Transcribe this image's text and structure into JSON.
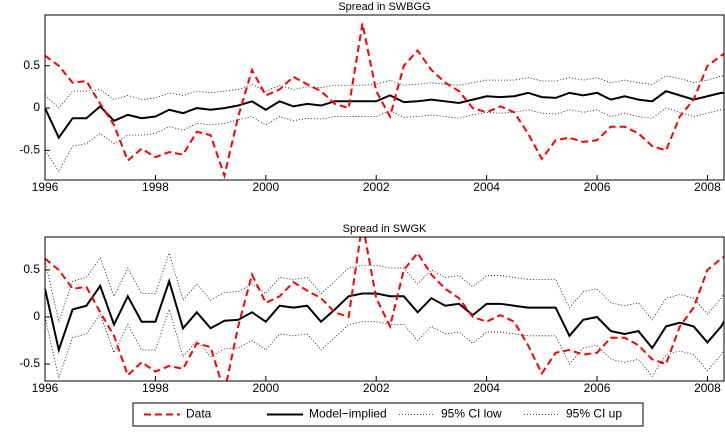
{
  "chart_data": [
    {
      "type": "line",
      "title": "Spread in SWBGG",
      "x": [
        1996,
        1996.25,
        1996.5,
        1996.75,
        1997,
        1997.25,
        1997.5,
        1997.75,
        1998,
        1998.25,
        1998.5,
        1998.75,
        1999,
        1999.25,
        1999.5,
        1999.75,
        2000,
        2000.25,
        2000.5,
        2000.75,
        2001,
        2001.25,
        2001.5,
        2001.75,
        2002,
        2002.25,
        2002.5,
        2002.75,
        2003,
        2003.25,
        2003.5,
        2003.75,
        2004,
        2004.25,
        2004.5,
        2004.75,
        2005,
        2005.25,
        2005.5,
        2005.75,
        2006,
        2006.25,
        2006.5,
        2006.75,
        2007,
        2007.25,
        2007.5,
        2007.75,
        2008,
        2008.25,
        2008.5
      ],
      "xlim": [
        1996,
        2008.3
      ],
      "xticks": [
        1996,
        1998,
        2000,
        2002,
        2004,
        2006,
        2008
      ],
      "ylim": [
        -0.85,
        1.1
      ],
      "yticks": [
        -0.5,
        0,
        0.5
      ],
      "series": [
        {
          "name": "Data",
          "color": "#ff0000",
          "style": "dashed",
          "values": [
            0.62,
            0.5,
            0.3,
            0.32,
            0.05,
            -0.2,
            -0.62,
            -0.48,
            -0.58,
            -0.52,
            -0.55,
            -0.28,
            -0.32,
            -0.8,
            -0.1,
            0.45,
            0.15,
            0.22,
            0.37,
            0.28,
            0.2,
            0.05,
            0.0,
            1.0,
            0.2,
            -0.1,
            0.5,
            0.68,
            0.45,
            0.3,
            0.2,
            0.0,
            -0.05,
            0.02,
            -0.05,
            -0.3,
            -0.6,
            -0.38,
            -0.35,
            -0.4,
            -0.38,
            -0.22,
            -0.22,
            -0.3,
            -0.45,
            -0.5,
            -0.1,
            0.1,
            0.5,
            0.62,
            0.72
          ]
        },
        {
          "name": "Model−implied",
          "color": "#000000",
          "style": "solid",
          "values": [
            0,
            -0.35,
            -0.12,
            -0.12,
            0.02,
            -0.15,
            -0.08,
            -0.12,
            -0.1,
            -0.02,
            -0.06,
            0.0,
            -0.02,
            0.0,
            0.03,
            0.08,
            -0.02,
            0.08,
            0.02,
            0.05,
            0.03,
            0.08,
            0.08,
            0.08,
            0.08,
            0.15,
            0.07,
            0.08,
            0.1,
            0.08,
            0.06,
            0.1,
            0.14,
            0.13,
            0.14,
            0.18,
            0.13,
            0.12,
            0.18,
            0.15,
            0.18,
            0.1,
            0.14,
            0.1,
            0.08,
            0.2,
            0.15,
            0.1,
            0.14,
            0.18,
            0.18
          ]
        },
        {
          "name": "95% CI low",
          "color": "#000000",
          "style": "dotted",
          "values": [
            -0.5,
            -0.75,
            -0.45,
            -0.42,
            -0.3,
            -0.42,
            -0.32,
            -0.32,
            -0.3,
            -0.22,
            -0.26,
            -0.18,
            -0.2,
            -0.18,
            -0.14,
            -0.1,
            -0.2,
            -0.1,
            -0.15,
            -0.12,
            -0.13,
            -0.1,
            -0.1,
            -0.1,
            -0.1,
            -0.03,
            -0.11,
            -0.1,
            -0.08,
            -0.1,
            -0.12,
            -0.08,
            -0.05,
            -0.06,
            -0.05,
            -0.02,
            -0.06,
            -0.07,
            -0.02,
            -0.05,
            -0.02,
            -0.1,
            -0.06,
            -0.1,
            -0.12,
            0.0,
            -0.05,
            -0.1,
            -0.06,
            -0.02,
            -0.02
          ]
        },
        {
          "name": "95% CI up",
          "color": "#000000",
          "style": "dotted",
          "values": [
            0.15,
            0.0,
            0.2,
            0.2,
            0.22,
            0.1,
            0.15,
            0.1,
            0.12,
            0.18,
            0.15,
            0.2,
            0.18,
            0.2,
            0.22,
            0.28,
            0.2,
            0.27,
            0.22,
            0.25,
            0.24,
            0.27,
            0.27,
            0.27,
            0.28,
            0.33,
            0.27,
            0.28,
            0.3,
            0.28,
            0.27,
            0.3,
            0.33,
            0.33,
            0.33,
            0.36,
            0.32,
            0.32,
            0.36,
            0.33,
            0.36,
            0.3,
            0.33,
            0.3,
            0.28,
            0.38,
            0.35,
            0.3,
            0.33,
            0.38,
            0.38
          ]
        }
      ]
    },
    {
      "type": "line",
      "title": "Spread in SWGK",
      "x": [
        1996,
        1996.25,
        1996.5,
        1996.75,
        1997,
        1997.25,
        1997.5,
        1997.75,
        1998,
        1998.25,
        1998.5,
        1998.75,
        1999,
        1999.25,
        1999.5,
        1999.75,
        2000,
        2000.25,
        2000.5,
        2000.75,
        2001,
        2001.25,
        2001.5,
        2001.75,
        2002,
        2002.25,
        2002.5,
        2002.75,
        2003,
        2003.25,
        2003.5,
        2003.75,
        2004,
        2004.25,
        2004.5,
        2004.75,
        2005,
        2005.25,
        2005.5,
        2005.75,
        2006,
        2006.25,
        2006.5,
        2006.75,
        2007,
        2007.25,
        2007.5,
        2007.75,
        2008,
        2008.25,
        2008.5
      ],
      "xlim": [
        1996,
        2008.3
      ],
      "xticks": [
        1996,
        1998,
        2000,
        2002,
        2004,
        2006,
        2008
      ],
      "ylim": [
        -0.68,
        0.85
      ],
      "yticks": [
        -0.5,
        0,
        0.5
      ],
      "series": [
        {
          "color": "#ff0000",
          "style": "dashed",
          "values": [
            0.62,
            0.5,
            0.3,
            0.32,
            0.05,
            -0.2,
            -0.62,
            -0.48,
            -0.58,
            -0.52,
            -0.55,
            -0.28,
            -0.32,
            -0.8,
            -0.1,
            0.45,
            0.15,
            0.22,
            0.37,
            0.28,
            0.2,
            0.05,
            0.0,
            1.0,
            0.2,
            -0.1,
            0.5,
            0.68,
            0.45,
            0.3,
            0.2,
            0.0,
            -0.05,
            0.02,
            -0.05,
            -0.3,
            -0.6,
            -0.38,
            -0.35,
            -0.4,
            -0.38,
            -0.22,
            -0.22,
            -0.3,
            -0.45,
            -0.5,
            -0.1,
            0.1,
            0.5,
            0.62,
            0.72
          ]
        },
        {
          "color": "#000000",
          "style": "solid",
          "values": [
            0.3,
            -0.35,
            0.08,
            0.12,
            0.33,
            -0.08,
            0.22,
            -0.05,
            -0.05,
            0.38,
            -0.12,
            0.05,
            -0.12,
            -0.04,
            -0.03,
            0.05,
            -0.05,
            0.12,
            0.1,
            0.12,
            -0.05,
            0.08,
            0.22,
            0.25,
            0.25,
            0.22,
            0.22,
            0.05,
            0.2,
            0.12,
            0.14,
            0.02,
            0.14,
            0.14,
            0.12,
            0.1,
            0.1,
            0.1,
            -0.2,
            -0.03,
            0.0,
            -0.15,
            -0.18,
            -0.15,
            -0.33,
            -0.1,
            -0.06,
            -0.1,
            -0.27,
            -0.1,
            0.16
          ]
        },
        {
          "color": "#000000",
          "style": "dotted",
          "values": [
            0,
            -0.65,
            -0.22,
            -0.18,
            0.03,
            -0.38,
            -0.08,
            -0.35,
            -0.35,
            0.08,
            -0.42,
            -0.25,
            -0.42,
            -0.34,
            -0.33,
            -0.25,
            -0.35,
            -0.18,
            -0.2,
            -0.18,
            -0.35,
            -0.22,
            -0.08,
            -0.05,
            -0.05,
            -0.08,
            -0.08,
            -0.25,
            -0.1,
            -0.18,
            -0.16,
            -0.28,
            -0.16,
            -0.16,
            -0.18,
            -0.2,
            -0.2,
            -0.2,
            -0.5,
            -0.33,
            -0.3,
            -0.45,
            -0.48,
            -0.45,
            -0.63,
            -0.4,
            -0.36,
            -0.4,
            -0.57,
            -0.4,
            -0.14
          ]
        },
        {
          "color": "#000000",
          "style": "dotted",
          "values": [
            0.6,
            -0.05,
            0.38,
            0.42,
            0.63,
            0.22,
            0.52,
            0.25,
            0.25,
            0.68,
            0.18,
            0.35,
            0.18,
            0.26,
            0.27,
            0.35,
            0.25,
            0.42,
            0.4,
            0.42,
            0.25,
            0.38,
            0.52,
            0.55,
            0.55,
            0.52,
            0.52,
            0.35,
            0.5,
            0.42,
            0.44,
            0.32,
            0.44,
            0.44,
            0.42,
            0.4,
            0.4,
            0.4,
            0.1,
            0.27,
            0.3,
            0.15,
            0.12,
            0.15,
            -0.03,
            0.2,
            0.24,
            0.2,
            0.03,
            0.2,
            0.46
          ]
        }
      ]
    }
  ]
}
